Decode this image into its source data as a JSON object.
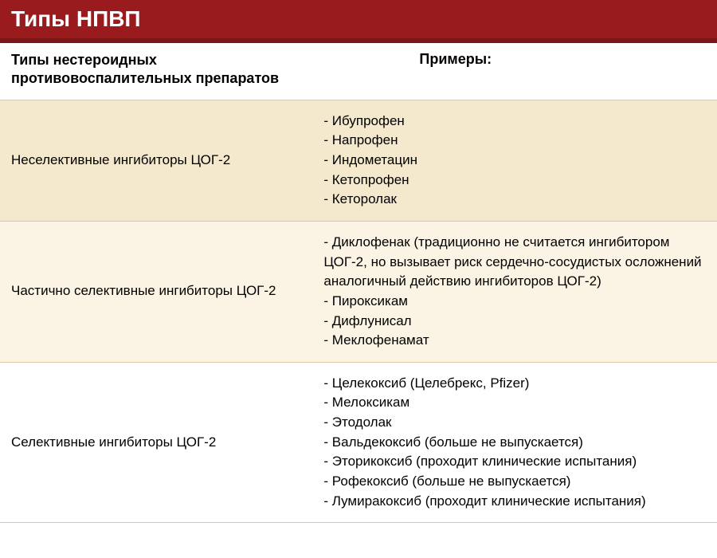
{
  "title": "Типы НПВП",
  "columns": {
    "left": "Типы нестероидных противовоспалительных препаратов",
    "right": "Примеры:"
  },
  "rows": [
    {
      "type_label": "Неселективные ингибиторы ЦОГ-2",
      "bg_color": "#f4e8cd",
      "examples": [
        "- Ибупрофен",
        "- Напрофен",
        "- Индометацин",
        "- Кетопрофен",
        "- Кеторолак"
      ]
    },
    {
      "type_label": "Частично селективные ингибиторы ЦОГ-2",
      "bg_color": "#fbf4e4",
      "examples": [
        "- Диклофенак (традиционно не считается ингибитором ЦОГ-2, но вызывает риск сердечно-сосудистых осложнений аналогичный действию ингибиторов ЦОГ-2)",
        "- Пироксикам",
        "- Дифлунисал",
        "- Меклофенамат"
      ]
    },
    {
      "type_label": "Селективные ингибиторы ЦОГ-2",
      "bg_color": "#ffffff",
      "examples": [
        "- Целекоксиб (Целебрекс, Pfizer)",
        "- Мелоксикам",
        "- Этодолак",
        "- Вальдекоксиб (больше не выпускается)",
        "- Эторикоксиб (проходит клинические испытания)",
        "- Рофекоксиб (больше не выпускается)",
        "- Лумиракоксиб (проходит клинические испытания)"
      ]
    }
  ],
  "colors": {
    "title_bg": "#9a1b1e",
    "title_border": "#7a1518",
    "row_border": "#d9c9a8"
  }
}
